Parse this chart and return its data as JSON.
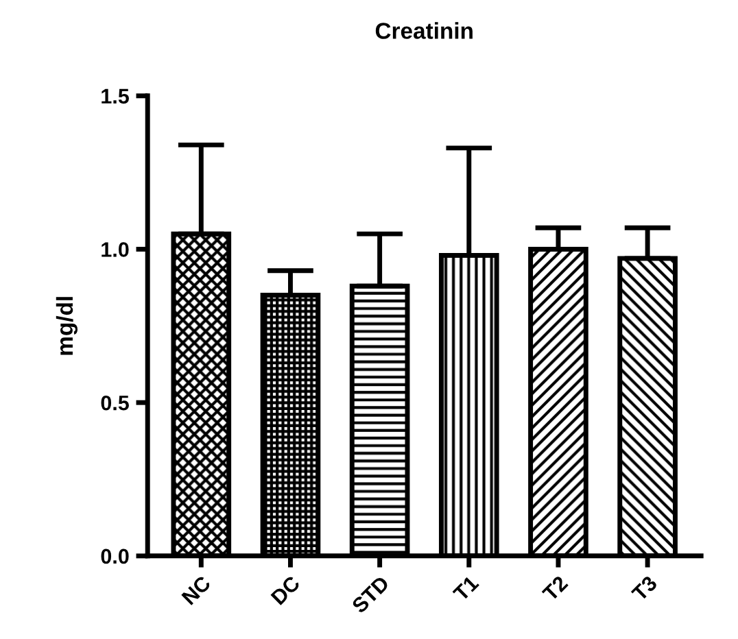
{
  "chart_data": {
    "type": "bar",
    "title": "Creatinin",
    "ylabel": "mg/dl",
    "categories": [
      "NC",
      "DC",
      "STD",
      "T1",
      "T2",
      "T3"
    ],
    "values": [
      1.05,
      0.85,
      0.88,
      0.98,
      1.0,
      0.97
    ],
    "errors": [
      [
        1.05,
        1.34
      ],
      [
        0.85,
        0.93
      ],
      [
        0.88,
        1.05
      ],
      [
        0.98,
        1.33
      ],
      [
        1.0,
        1.07
      ],
      [
        0.97,
        1.07
      ]
    ],
    "color": "#000000",
    "ylim": [
      0,
      1.5
    ],
    "yticks": [
      {
        "value": 0,
        "label": "0.0"
      },
      {
        "value": 0.5,
        "label": "0.5"
      },
      {
        "value": 1.0,
        "label": "1.0"
      },
      {
        "value": 1.5,
        "label": "1.5"
      }
    ],
    "grid": false,
    "legend": false
  }
}
